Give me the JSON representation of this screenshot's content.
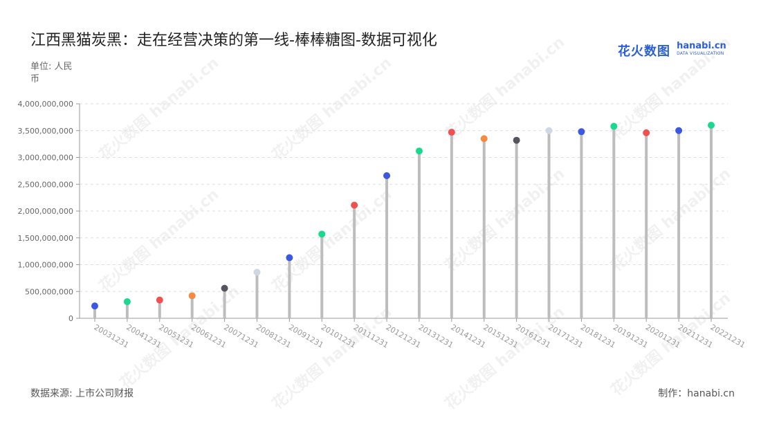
{
  "header": {
    "title": "江西黑猫炭黑：走在经营决策的第一线-棒棒糖图-数据可视化",
    "unit": "单位: 人民币"
  },
  "logo": {
    "cn": "花火数图",
    "en": "hanabi.cn",
    "sub": "DATA VISUALIZATION"
  },
  "footer": {
    "source": "数据来源: 上市公司财报",
    "credit": "制作：hanabi.cn"
  },
  "watermark": {
    "text": "花火数图 hanabi.cn"
  },
  "colors": {
    "stem": "#bdbdbd",
    "grid": "#dddddd",
    "axis": "#999999",
    "tick_text": "#666666",
    "palette": [
      "#3b59e0",
      "#19d98f",
      "#f05050",
      "#f58a42",
      "#555560",
      "#cfd6e4"
    ]
  },
  "chart_data": {
    "type": "lollipop",
    "categories": [
      "20031231",
      "20041231",
      "20051231",
      "20061231",
      "20071231",
      "20081231",
      "20091231",
      "20101231",
      "20111231",
      "20121231",
      "20131231",
      "20141231",
      "20151231",
      "20161231",
      "20171231",
      "20181231",
      "20191231",
      "20201231",
      "20211231",
      "20221231"
    ],
    "values": [
      230000000,
      310000000,
      340000000,
      420000000,
      560000000,
      860000000,
      1130000000,
      1570000000,
      2110000000,
      2660000000,
      3120000000,
      3470000000,
      3350000000,
      3320000000,
      3500000000,
      3480000000,
      3580000000,
      3460000000,
      3500000000,
      3600000000
    ],
    "point_colors": [
      "#3b59e0",
      "#19d98f",
      "#f05050",
      "#f58a42",
      "#555560",
      "#cfd6e4",
      "#3b59e0",
      "#19d98f",
      "#f05050",
      "#3b59e0",
      "#19d98f",
      "#f05050",
      "#f58a42",
      "#555560",
      "#cfd6e4",
      "#3b59e0",
      "#19d98f",
      "#f05050",
      "#3b59e0",
      "#19d98f"
    ],
    "y_ticks": [
      "0",
      "500,000,000",
      "1,000,000,000",
      "1,500,000,000",
      "2,000,000,000",
      "2,500,000,000",
      "3,000,000,000",
      "3,500,000,000",
      "4,000,000,000"
    ],
    "ylim": [
      0,
      4000000000
    ],
    "grid": true,
    "legend": "none"
  }
}
